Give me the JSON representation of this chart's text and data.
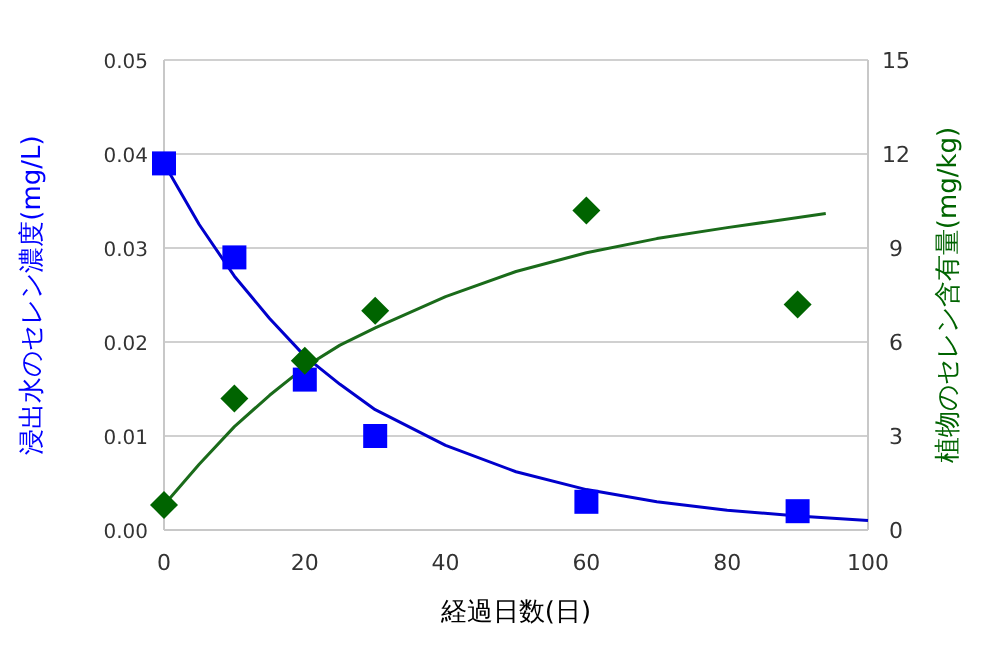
{
  "chart_data": {
    "type": "scatter",
    "xlabel": "経過日数(日)",
    "ylabel": "浸出水のセレン濃度(mg/L)",
    "y2label": "植物のセレン含有量(mg/kg)",
    "xlim": [
      0,
      100
    ],
    "xticks": [
      0,
      20,
      40,
      60,
      80,
      100
    ],
    "ylim": [
      0,
      0.05
    ],
    "yticks": [
      {
        "value": 0,
        "label": "0.00"
      },
      0.01,
      0.02,
      0.03,
      0.04,
      0.05
    ],
    "y2lim": [
      0,
      15
    ],
    "y2ticks": [
      0,
      3,
      6,
      9,
      12,
      15
    ],
    "grid": "y",
    "series": [
      {
        "marker": "square",
        "color": "#0000ff",
        "x": [
          0,
          10,
          20,
          30,
          60,
          90
        ],
        "values": [
          0.039,
          0.029,
          0.016,
          0.01,
          0.003,
          0.002
        ]
      },
      {
        "marker": "diamond",
        "axis": "y2",
        "color": "#006400",
        "x": [
          0,
          10,
          20,
          30,
          60,
          90
        ],
        "values": [
          0.8,
          4.2,
          5.4,
          7.0,
          10.2,
          7.2
        ]
      },
      {
        "type": "line",
        "color": "#0000cc",
        "x": [
          0,
          5,
          10,
          15,
          20,
          25,
          30,
          40,
          50,
          60,
          70,
          80,
          90,
          100
        ],
        "values": [
          0.039,
          0.0325,
          0.027,
          0.0225,
          0.0185,
          0.0155,
          0.0128,
          0.009,
          0.0062,
          0.0043,
          0.003,
          0.0021,
          0.0015,
          0.001
        ]
      },
      {
        "type": "line",
        "axis": "y2",
        "color": "#1a6b1a",
        "x": [
          0,
          5,
          10,
          15,
          20,
          25,
          30,
          40,
          50,
          60,
          70,
          80,
          94
        ],
        "values": [
          0.8,
          2.1,
          3.3,
          4.3,
          5.2,
          5.9,
          6.45,
          7.45,
          8.25,
          8.85,
          9.3,
          9.65,
          10.1
        ]
      }
    ]
  }
}
